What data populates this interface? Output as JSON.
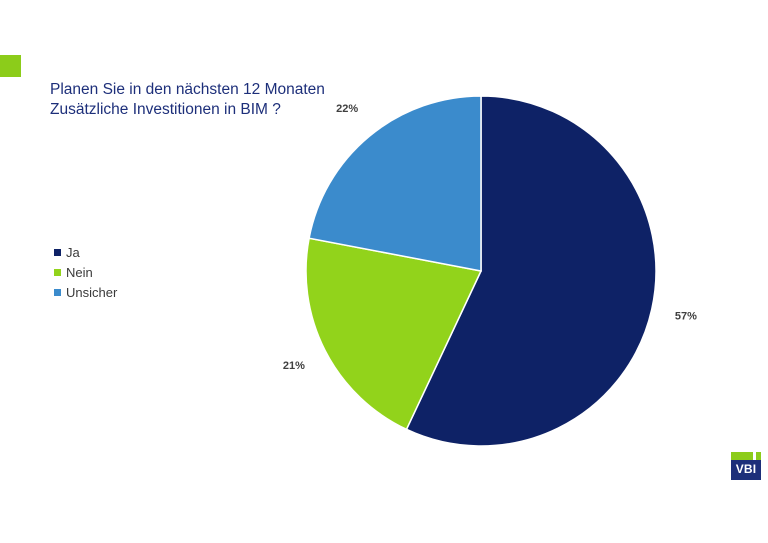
{
  "title_lines": [
    "Planen Sie in den nächsten 12 Monaten",
    "Zusätzliche Investitionen in BIM ?"
  ],
  "logo": {
    "text": "VBI"
  },
  "colors": {
    "accent_green": "#8ccc1a",
    "brand_navy": "#1d2f7a"
  },
  "chart_data": {
    "type": "pie",
    "title": "Planen Sie in den nächsten 12 Monaten Zusätzliche Investitionen in BIM ?",
    "categories": [
      "Ja",
      "Nein",
      "Unsicher"
    ],
    "values": [
      57,
      21,
      22
    ],
    "labels": [
      "57%",
      "21%",
      "22%"
    ],
    "colors": [
      "#0e2266",
      "#92d31b",
      "#3b8bcc"
    ],
    "legend_position": "left"
  }
}
